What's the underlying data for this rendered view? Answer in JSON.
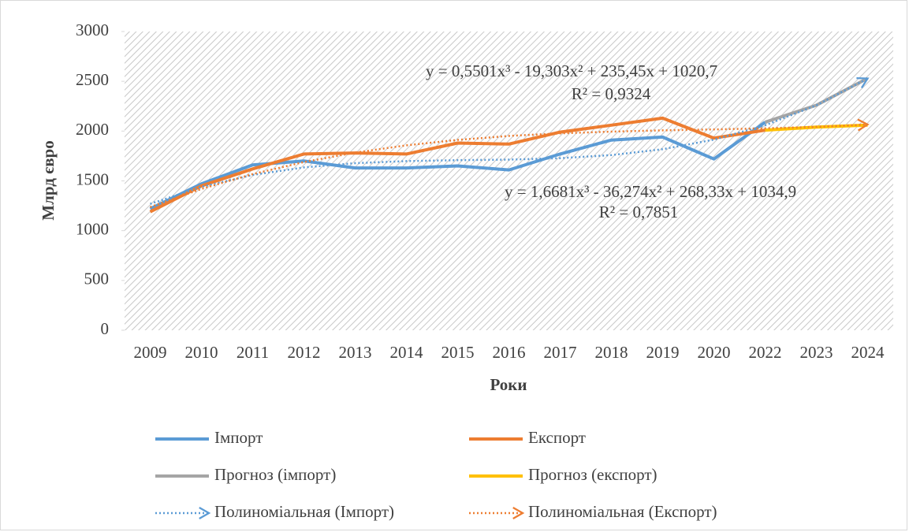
{
  "chart_data": {
    "type": "line",
    "xlabel": "Роки",
    "ylabel": "Млрд євро",
    "categories": [
      "2009",
      "2010",
      "2011",
      "2012",
      "2013",
      "2014",
      "2015",
      "2016",
      "2017",
      "2018",
      "2019",
      "2020",
      "2022",
      "2023",
      "2024"
    ],
    "ylim": [
      0,
      3000
    ],
    "yticks": [
      0,
      500,
      1000,
      1500,
      2000,
      2500,
      3000
    ],
    "background": "hatched",
    "legend": "bottom",
    "series": [
      {
        "name": "Імпорт",
        "color": "#5b9bd5",
        "style": "solid",
        "values": [
          1220,
          1470,
          1660,
          1700,
          1630,
          1630,
          1650,
          1610,
          1770,
          1910,
          1940,
          1720,
          2090,
          null,
          null
        ]
      },
      {
        "name": "Експорт",
        "color": "#ed7d31",
        "style": "solid",
        "values": [
          1190,
          1450,
          1620,
          1770,
          1780,
          1770,
          1880,
          1870,
          1990,
          2060,
          2130,
          1930,
          2010,
          null,
          null
        ]
      },
      {
        "name": "Прогноз (імпорт)",
        "color": "#a5a5a5",
        "style": "solid",
        "values": [
          null,
          null,
          null,
          null,
          null,
          null,
          null,
          null,
          null,
          null,
          null,
          null,
          2090,
          2260,
          2530
        ]
      },
      {
        "name": "Прогноз (експорт)",
        "color": "#ffc000",
        "style": "solid",
        "values": [
          null,
          null,
          null,
          null,
          null,
          null,
          null,
          null,
          null,
          null,
          null,
          null,
          2010,
          2040,
          2060
        ]
      },
      {
        "name": "Полиноміальная (Імпорт)",
        "color": "#5b9bd5",
        "style": "dotted",
        "arrow": true,
        "values": [
          1269,
          1440,
          1559,
          1635,
          1678,
          1699,
          1708,
          1714,
          1728,
          1759,
          1818,
          1914,
          2058,
          2259,
          2528
        ]
      },
      {
        "name": "Полиноміальная (Експорт)",
        "color": "#ed7d31",
        "style": "dotted",
        "arrow": true,
        "values": [
          1237,
          1419,
          1568,
          1689,
          1784,
          1857,
          1912,
          1951,
          1977,
          1995,
          2007,
          2017,
          2028,
          2043,
          2066
        ]
      }
    ],
    "annotations": [
      "y = 0,5501x³ - 19,303x² + 235,45x + 1020,7",
      "R² = 0,9324",
      "y = 1,6681x³ - 36,274x² + 268,33x + 1034,9",
      "R² = 0,7851"
    ]
  }
}
